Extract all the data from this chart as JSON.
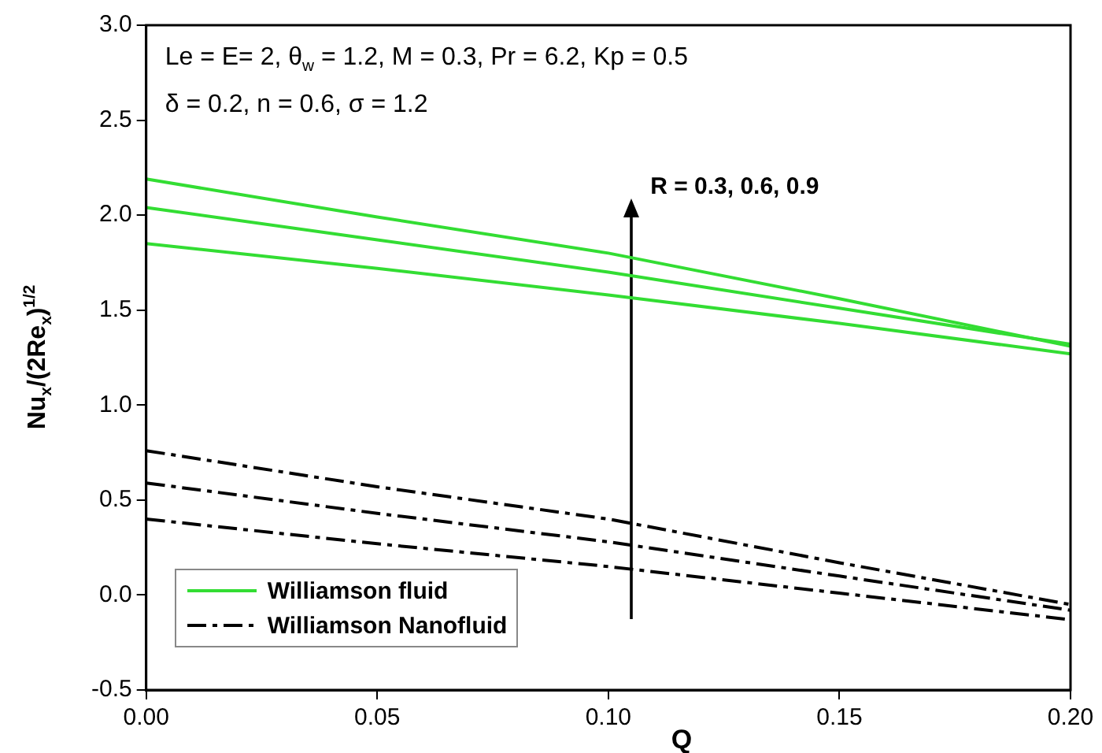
{
  "chart_data": {
    "type": "line",
    "xlabel": "Q",
    "ylabel": "Nu$_{x}$/(2Re$_{x}$)$^{1/2}$",
    "x": [
      0,
      0.05,
      0.1,
      0.15,
      0.2
    ],
    "series": [
      {
        "name": "Williamson fluid",
        "color": "#33dd33",
        "line_style": "solid",
        "values": [
          2.19,
          1.99,
          1.8,
          1.56,
          1.31
        ]
      },
      {
        "color": "#33dd33",
        "line_style": "solid",
        "values": [
          2.04,
          1.87,
          1.7,
          1.51,
          1.32
        ]
      },
      {
        "color": "#33dd33",
        "line_style": "solid",
        "values": [
          1.85,
          1.72,
          1.58,
          1.43,
          1.27
        ]
      },
      {
        "name": "Williamson Nanofluid",
        "color": "#000000",
        "line_style": "dashdot",
        "values": [
          0.76,
          0.57,
          0.4,
          0.17,
          -0.05
        ]
      },
      {
        "color": "#000000",
        "line_style": "dashdot",
        "values": [
          0.59,
          0.43,
          0.28,
          0.1,
          -0.08
        ]
      },
      {
        "color": "#000000",
        "line_style": "dashdot",
        "values": [
          0.4,
          0.27,
          0.15,
          0.01,
          -0.13
        ]
      }
    ],
    "xlim": [
      0,
      0.2
    ],
    "xticks": [
      {
        "value": 0,
        "label": "0.00"
      },
      {
        "value": 0.05,
        "label": "0.05"
      },
      {
        "value": 0.1,
        "label": "0.10"
      },
      {
        "value": 0.15,
        "label": "0.15"
      },
      {
        "value": 0.2,
        "label": "0.20"
      }
    ],
    "ylim": [
      -0.5,
      3
    ],
    "yticks": [
      {
        "value": -0.5,
        "label": "-0.5"
      },
      {
        "value": 0,
        "label": "0.0"
      },
      {
        "value": 0.5,
        "label": "0.5"
      },
      {
        "value": 1,
        "label": "1.0"
      },
      {
        "value": 1.5,
        "label": "1.5"
      },
      {
        "value": 2,
        "label": "2.0"
      },
      {
        "value": 2.5,
        "label": "2.5"
      },
      {
        "value": 3,
        "label": "3.0"
      }
    ],
    "grid": false,
    "legend": "bottom left",
    "marker": "none",
    "annotations": [
      "Le = E= 2, θ$_{w}$  = 1.2, M =  0.3, Pr = 6.2, Kp = 0.5",
      "δ = 0.2, n = 0.6, σ = 1.2",
      "R = 0.3, 0.6, 0.9"
    ]
  }
}
